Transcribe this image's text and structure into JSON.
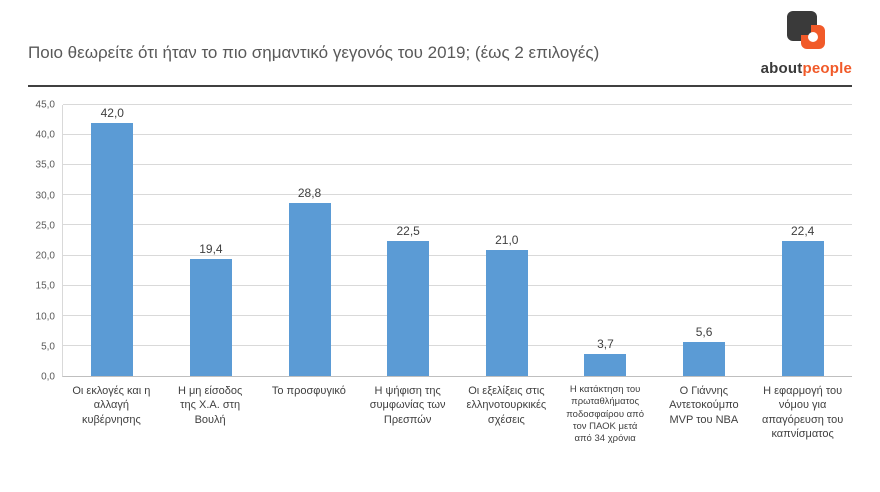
{
  "header": {
    "title": "Ποιο θεωρείτε ότι ήταν το πιο σημαντικό γεγονός του 2019;  (έως 2 επιλογές)",
    "logo": {
      "part1": "about",
      "part2": "people",
      "dark_color": "#3A3A3A",
      "accent_color": "#F15A29"
    }
  },
  "chart_data": {
    "type": "bar",
    "title": "Ποιο θεωρείτε ότι ήταν το πιο σημαντικό γεγονός του 2019;  (έως 2 επιλογές)",
    "categories": [
      "Οι εκλογές και η αλλαγή κυβέρνησης",
      "Η μη είσοδος της Χ.Α. στη Βουλή",
      "Το προσφυγικό",
      "Η ψήφιση της συμφωνίας των Πρεσπών",
      "Οι εξελίξεις στις ελληνοτουρκικές σχέσεις",
      "Η κατάκτηση του πρωταθλήματος ποδοσφαίρου από τον ΠΑΟΚ μετά από 34 χρόνια",
      "Ο Γιάννης Αντετοκούμπο  MVP του NBA",
      "Η εφαρμογή του νόμου για απαγόρευση του καπνίσματος"
    ],
    "values": [
      42.0,
      19.4,
      28.8,
      22.5,
      21.0,
      3.7,
      5.6,
      22.4
    ],
    "value_labels": [
      "42,0",
      "19,4",
      "28,8",
      "22,5",
      "21,0",
      "3,7",
      "5,6",
      "22,4"
    ],
    "xlabel": "",
    "ylabel": "",
    "ylim": [
      0,
      45
    ],
    "ytick_step": 5,
    "ytick_labels": [
      "0,0",
      "5,0",
      "10,0",
      "15,0",
      "20,0",
      "25,0",
      "30,0",
      "35,0",
      "40,0",
      "45,0"
    ],
    "bar_color": "#5B9BD5",
    "grid": true,
    "legend": "none"
  }
}
